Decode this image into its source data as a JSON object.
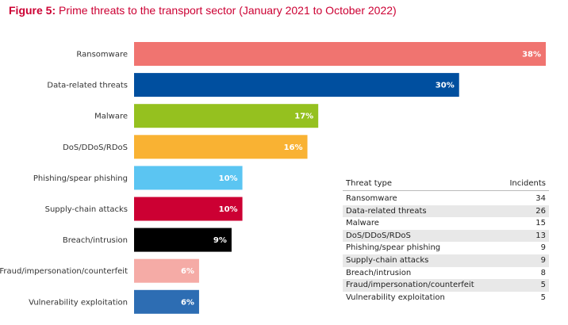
{
  "title": {
    "prefix": "Figure 5:",
    "text": "Prime threats to the transport sector (January 2021 to October 2022)"
  },
  "chart_data": {
    "type": "bar",
    "orientation": "horizontal",
    "categories": [
      "Ransomware",
      "Data-related threats",
      "Malware",
      "DoS/DDoS/RDoS",
      "Phishing/spear phishing",
      "Supply-chain attacks",
      "Breach/intrusion",
      "Fraud/impersonation/counterfeit",
      "Vulnerability exploitation"
    ],
    "values": [
      38,
      30,
      17,
      16,
      10,
      10,
      9,
      6,
      6
    ],
    "value_labels": [
      "38%",
      "30%",
      "17%",
      "16%",
      "10%",
      "10%",
      "9%",
      "6%",
      "6%"
    ],
    "colors": [
      "#f07470",
      "#004f9f",
      "#95c11f",
      "#f9b233",
      "#5bc5f2",
      "#cc0033",
      "#000000",
      "#f5aba6",
      "#2d6db3"
    ],
    "xlim": [
      0,
      38
    ],
    "grid": false,
    "legend": "none"
  },
  "table": {
    "headers": [
      "Threat type",
      "Incidents"
    ],
    "rows": [
      [
        "Ransomware",
        "34"
      ],
      [
        "Data-related threats",
        "26"
      ],
      [
        "Malware",
        "15"
      ],
      [
        "DoS/DDoS/RDoS",
        "13"
      ],
      [
        "Phishing/spear phishing",
        "9"
      ],
      [
        "Supply-chain attacks",
        "9"
      ],
      [
        "Breach/intrusion",
        "8"
      ],
      [
        "Fraud/impersonation/counterfeit",
        "5"
      ],
      [
        "Vulnerability exploitation",
        "5"
      ]
    ]
  }
}
